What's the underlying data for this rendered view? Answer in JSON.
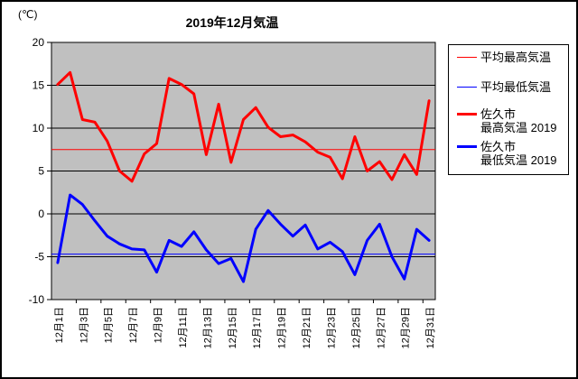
{
  "chart": {
    "title": "2019年12月気温",
    "y_unit": "(℃)"
  },
  "legend": {
    "items": [
      {
        "label": "平均最高気温",
        "color": "#ff0000",
        "style": "thin"
      },
      {
        "label": "平均最低気温",
        "color": "#0000ff",
        "style": "thin"
      },
      {
        "label": "佐久市",
        "label2": "最高気温 2019",
        "color": "#ff0000",
        "style": "thick"
      },
      {
        "label": "佐久市",
        "label2": "最低気温 2019",
        "color": "#0000ff",
        "style": "thick"
      }
    ]
  },
  "chart_data": {
    "type": "line",
    "title": "2019年12月気温",
    "y_unit": "(℃)",
    "ylim": [
      -10,
      20
    ],
    "ytick_interval": 5,
    "y_ticks": [
      20,
      15,
      10,
      5,
      0,
      -5,
      -10
    ],
    "grid": true,
    "plot_bg": "#c0c0c0",
    "legend_position": "right",
    "x_labels": [
      "12月1日",
      "12月3日",
      "12月5日",
      "12月7日",
      "12月9日",
      "12月11日",
      "12月13日",
      "12月15日",
      "12月17日",
      "12月19日",
      "12月21日",
      "12月23日",
      "12月25日",
      "12月27日",
      "12月29日",
      "12月31日"
    ],
    "x_label_days": [
      1,
      3,
      5,
      7,
      9,
      11,
      13,
      15,
      17,
      19,
      21,
      23,
      25,
      27,
      29,
      31
    ],
    "days": [
      1,
      2,
      3,
      4,
      5,
      6,
      7,
      8,
      9,
      10,
      11,
      12,
      13,
      14,
      15,
      16,
      17,
      18,
      19,
      20,
      21,
      22,
      23,
      24,
      25,
      26,
      27,
      28,
      29,
      30,
      31
    ],
    "series": [
      {
        "name": "平均最高気温",
        "type": "reference-line",
        "color": "#ff0000",
        "width": 1,
        "value": 7.5
      },
      {
        "name": "平均最低気温",
        "type": "reference-line",
        "color": "#0000ff",
        "width": 1,
        "value": -4.7
      },
      {
        "name": "佐久市 最高気温 2019",
        "type": "line",
        "color": "#ff0000",
        "width": 3,
        "values": [
          15.1,
          16.5,
          11.0,
          10.7,
          8.5,
          5.0,
          3.8,
          7.0,
          8.2,
          15.8,
          15.1,
          14.0,
          6.9,
          12.8,
          6.0,
          11.0,
          12.4,
          10.1,
          9.0,
          9.2,
          8.4,
          7.2,
          6.6,
          4.1,
          9.0,
          5.0,
          6.1,
          4.0,
          6.9,
          4.6,
          13.2
        ]
      },
      {
        "name": "佐久市 最低気温 2019",
        "type": "line",
        "color": "#0000ff",
        "width": 3,
        "values": [
          -5.7,
          2.2,
          1.1,
          -0.8,
          -2.6,
          -3.5,
          -4.1,
          -4.2,
          -6.8,
          -3.1,
          -3.8,
          -2.1,
          -4.2,
          -5.8,
          -5.2,
          -7.9,
          -1.8,
          0.4,
          -1.2,
          -2.6,
          -1.3,
          -4.1,
          -3.3,
          -4.4,
          -7.1,
          -3.1,
          -1.2,
          -5.0,
          -7.6,
          -1.8,
          -3.1
        ]
      }
    ]
  }
}
